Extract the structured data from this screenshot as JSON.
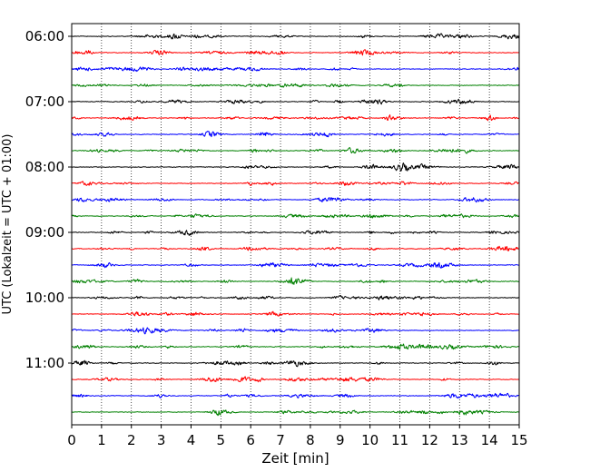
{
  "chart_data": {
    "type": "line",
    "title": "",
    "xlabel": "Zeit  [min]",
    "ylabel": "UTC (Lokalzeit = UTC + 01:00)",
    "xlim": [
      0,
      15
    ],
    "x_ticks": [
      0,
      1,
      2,
      3,
      4,
      5,
      6,
      7,
      8,
      9,
      10,
      11,
      12,
      13,
      14,
      15
    ],
    "y_tick_labels": [
      "06:00",
      "07:00",
      "08:00",
      "09:00",
      "10:00",
      "11:00"
    ],
    "grid": "vertical dotted",
    "legend": "none",
    "trace_colors": [
      "#000000",
      "#ff0000",
      "#0000ff",
      "#008000"
    ],
    "series": [
      {
        "start": "06:00",
        "end": "06:15",
        "color": "#000000"
      },
      {
        "start": "06:15",
        "end": "06:30",
        "color": "#ff0000"
      },
      {
        "start": "06:30",
        "end": "06:45",
        "color": "#0000ff"
      },
      {
        "start": "06:45",
        "end": "07:00",
        "color": "#008000"
      },
      {
        "start": "07:00",
        "end": "07:15",
        "color": "#000000"
      },
      {
        "start": "07:15",
        "end": "07:30",
        "color": "#ff0000"
      },
      {
        "start": "07:30",
        "end": "07:45",
        "color": "#0000ff"
      },
      {
        "start": "07:45",
        "end": "08:00",
        "color": "#008000"
      },
      {
        "start": "08:00",
        "end": "08:15",
        "color": "#000000"
      },
      {
        "start": "08:15",
        "end": "08:30",
        "color": "#ff0000"
      },
      {
        "start": "08:30",
        "end": "08:45",
        "color": "#0000ff"
      },
      {
        "start": "08:45",
        "end": "09:00",
        "color": "#008000"
      },
      {
        "start": "09:00",
        "end": "09:15",
        "color": "#000000"
      },
      {
        "start": "09:15",
        "end": "09:30",
        "color": "#ff0000"
      },
      {
        "start": "09:30",
        "end": "09:45",
        "color": "#0000ff"
      },
      {
        "start": "09:45",
        "end": "10:00",
        "color": "#008000"
      },
      {
        "start": "10:00",
        "end": "10:15",
        "color": "#000000"
      },
      {
        "start": "10:15",
        "end": "10:30",
        "color": "#ff0000"
      },
      {
        "start": "10:30",
        "end": "10:45",
        "color": "#0000ff"
      },
      {
        "start": "10:45",
        "end": "11:00",
        "color": "#008000"
      },
      {
        "start": "11:00",
        "end": "11:15",
        "color": "#000000"
      },
      {
        "start": "11:15",
        "end": "11:30",
        "color": "#ff0000"
      },
      {
        "start": "11:30",
        "end": "11:45",
        "color": "#0000ff"
      },
      {
        "start": "11:45",
        "end": "12:00",
        "color": "#008000"
      }
    ]
  }
}
